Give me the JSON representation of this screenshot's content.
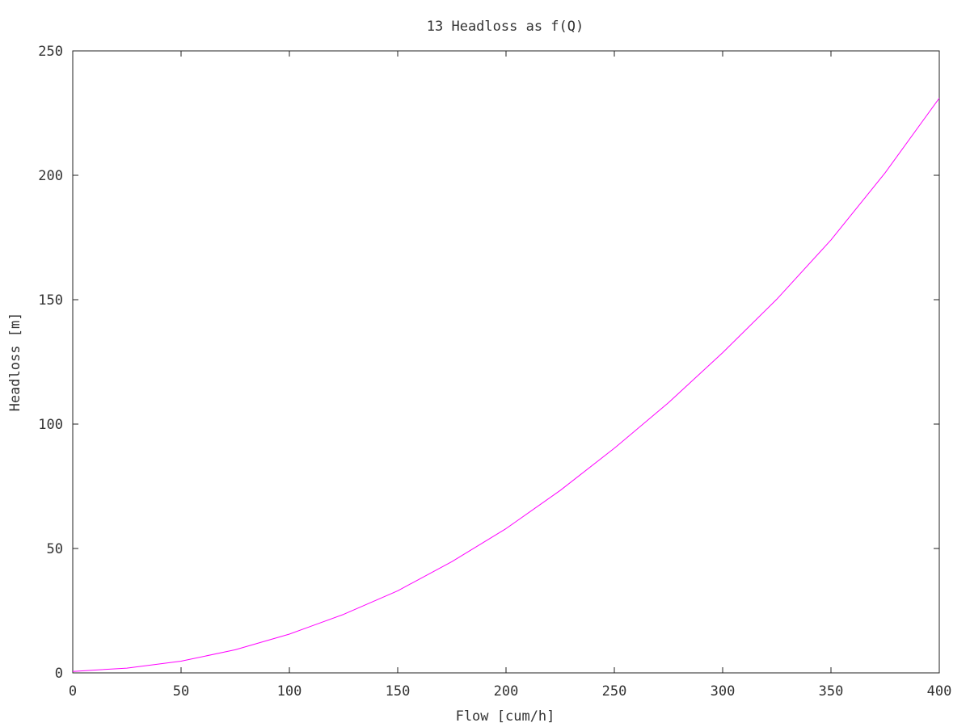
{
  "chart_data": {
    "type": "line",
    "title": "13 Headloss as f(Q)",
    "xlabel": "Flow [cum/h]",
    "ylabel": "Headloss [m]",
    "xlim": [
      0,
      400
    ],
    "ylim": [
      0,
      250
    ],
    "xticks": [
      0,
      50,
      100,
      150,
      200,
      250,
      300,
      350,
      400
    ],
    "yticks": [
      0,
      50,
      100,
      150,
      200,
      250
    ],
    "grid": false,
    "legend": "none",
    "series": [
      {
        "color": "#ff00ff",
        "x": [
          0,
          25,
          50,
          75,
          100,
          125,
          150,
          175,
          200,
          225,
          250,
          275,
          300,
          325,
          350,
          375,
          400
        ],
        "y": [
          0.6,
          1.9,
          4.7,
          9.3,
          15.6,
          23.5,
          33.0,
          44.7,
          58.0,
          73.3,
          90.3,
          108.6,
          128.7,
          150.2,
          174.0,
          201.0,
          231.0
        ]
      }
    ]
  }
}
